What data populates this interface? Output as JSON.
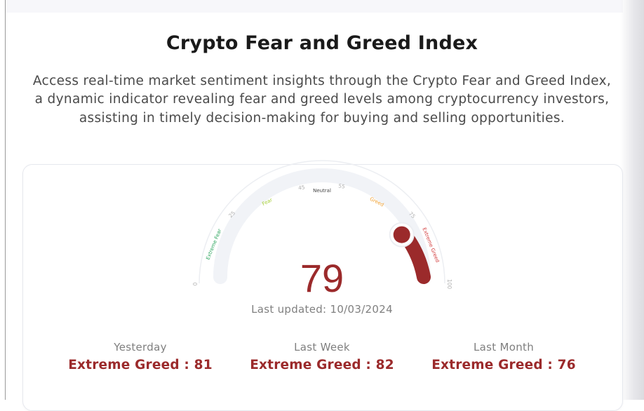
{
  "header": {
    "title": "Crypto Fear and Greed Index",
    "description": "Access real-time market sentiment insights through the Crypto Fear and Greed Index, a dynamic indicator revealing fear and greed levels among cryptocurrency investors, assisting in timely decision-making for buying and selling opportunities."
  },
  "gauge": {
    "value": 79,
    "value_label": "79",
    "min_label": "0",
    "max_label": "100",
    "ticks": [
      "25",
      "45",
      "55",
      "75"
    ],
    "zones": [
      "Extreme Fear",
      "Fear",
      "Neutral",
      "Greed",
      "Extreme Greed"
    ],
    "colors": {
      "extreme_fear": "#27a35a",
      "fear": "#a6cf3a",
      "neutral": "#444444",
      "greed": "#f0a030",
      "extreme_greed": "#d2393a",
      "value": "#9b2a2b",
      "track": "#f1f3f7"
    },
    "last_updated": "Last updated: 10/03/2024"
  },
  "history": [
    {
      "label": "Yesterday",
      "value": "Extreme Greed : 81"
    },
    {
      "label": "Last Week",
      "value": "Extreme Greed : 82"
    },
    {
      "label": "Last Month",
      "value": "Extreme Greed : 76"
    }
  ]
}
